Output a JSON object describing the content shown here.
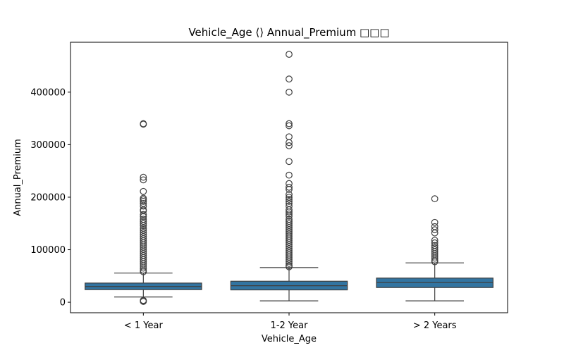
{
  "chart_data": {
    "type": "box",
    "title": "Vehicle_Age ⟨⟩ Annual_Premium □□□",
    "xlabel": "Vehicle_Age",
    "ylabel": "Annual_Premium",
    "ylim": [
      -20000,
      495000
    ],
    "yticks": [
      0,
      100000,
      200000,
      300000,
      400000
    ],
    "ytick_labels": [
      "0",
      "100000",
      "200000",
      "300000",
      "400000"
    ],
    "categories": [
      "< 1 Year",
      "1-2 Year",
      "> 2 Years"
    ],
    "box_color": "#3274a1",
    "line_color": "#3f3f3f",
    "grid": false,
    "boxes": [
      {
        "category": "< 1 Year",
        "whisker_low": 10000,
        "q1": 24000,
        "median": 30000,
        "q3": 36500,
        "whisker_high": 55500,
        "outliers": [
          340000,
          339000,
          238000,
          233000,
          211000,
          198000,
          195000,
          192000,
          188000,
          183000,
          176000,
          174000,
          167000,
          163000,
          158000,
          154000,
          150000,
          146000,
          141000,
          137000,
          133000,
          129000,
          125000,
          121000,
          117000,
          113000,
          109000,
          105000,
          101000,
          97000,
          93000,
          89000,
          85000,
          81000,
          77000,
          73000,
          69000,
          65000,
          61000,
          58000,
          3500,
          2630,
          1500
        ]
      },
      {
        "category": "1-2 Year",
        "whisker_low": 2630,
        "q1": 23500,
        "median": 31500,
        "q3": 40000,
        "whisker_high": 66000,
        "outliers": [
          472000,
          425000,
          400000,
          340000,
          336000,
          315000,
          304000,
          298000,
          268000,
          242000,
          226000,
          219000,
          215000,
          205000,
          200000,
          196000,
          192000,
          188000,
          183000,
          176000,
          172000,
          168000,
          164000,
          158000,
          154000,
          150000,
          146000,
          142000,
          138000,
          134000,
          130000,
          126000,
          122000,
          118000,
          114000,
          110000,
          106000,
          102000,
          98000,
          94000,
          90000,
          86000,
          82000,
          78000,
          74000,
          70000,
          67500
        ]
      },
      {
        "category": "> 2 Years",
        "whisker_low": 2630,
        "q1": 28000,
        "median": 37500,
        "q3": 46000,
        "whisker_high": 75000,
        "outliers": [
          197000,
          152000,
          144000,
          138000,
          132000,
          118000,
          113000,
          108000,
          104000,
          100000,
          96000,
          92000,
          88000,
          84000,
          80000,
          77000
        ]
      }
    ]
  }
}
